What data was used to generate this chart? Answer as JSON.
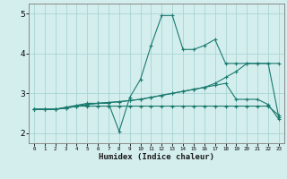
{
  "xlabel": "Humidex (Indice chaleur)",
  "background_color": "#d4eeee",
  "line_color": "#1a7a6e",
  "grid_color": "#a8d4d4",
  "xlim": [
    -0.5,
    23.5
  ],
  "ylim": [
    1.75,
    5.25
  ],
  "yticks": [
    2,
    3,
    4,
    5
  ],
  "xticks": [
    0,
    1,
    2,
    3,
    4,
    5,
    6,
    7,
    8,
    9,
    10,
    11,
    12,
    13,
    14,
    15,
    16,
    17,
    18,
    19,
    20,
    21,
    22,
    23
  ],
  "series": [
    {
      "x": [
        0,
        1,
        2,
        3,
        4,
        5,
        6,
        7,
        8,
        9,
        10,
        11,
        12,
        13,
        14,
        15,
        16,
        17,
        18,
        19,
        20,
        21,
        22,
        23
      ],
      "y": [
        2.6,
        2.6,
        2.6,
        2.65,
        2.7,
        2.75,
        2.75,
        2.75,
        2.05,
        2.9,
        3.35,
        4.2,
        4.95,
        4.95,
        4.1,
        4.1,
        4.2,
        4.35,
        3.75,
        3.75,
        3.75,
        3.75,
        3.75,
        2.4
      ]
    },
    {
      "x": [
        0,
        1,
        2,
        3,
        4,
        5,
        6,
        7,
        8,
        9,
        10,
        11,
        12,
        13,
        14,
        15,
        16,
        17,
        18,
        19,
        20,
        21,
        22,
        23
      ],
      "y": [
        2.6,
        2.6,
        2.6,
        2.65,
        2.68,
        2.68,
        2.68,
        2.68,
        2.68,
        2.68,
        2.68,
        2.68,
        2.68,
        2.68,
        2.68,
        2.68,
        2.68,
        2.68,
        2.68,
        2.68,
        2.68,
        2.68,
        2.68,
        2.45
      ]
    },
    {
      "x": [
        0,
        1,
        2,
        3,
        4,
        5,
        6,
        7,
        8,
        9,
        10,
        11,
        12,
        13,
        14,
        15,
        16,
        17,
        18,
        19,
        20,
        21,
        22,
        23
      ],
      "y": [
        2.6,
        2.6,
        2.6,
        2.63,
        2.68,
        2.72,
        2.75,
        2.77,
        2.79,
        2.82,
        2.85,
        2.9,
        2.95,
        3.0,
        3.05,
        3.1,
        3.15,
        3.25,
        3.4,
        3.55,
        3.75,
        3.75,
        3.75,
        3.75
      ]
    },
    {
      "x": [
        0,
        1,
        2,
        3,
        4,
        5,
        6,
        7,
        8,
        9,
        10,
        11,
        12,
        13,
        14,
        15,
        16,
        17,
        18,
        19,
        20,
        21,
        22,
        23
      ],
      "y": [
        2.6,
        2.6,
        2.6,
        2.63,
        2.68,
        2.72,
        2.75,
        2.77,
        2.79,
        2.82,
        2.85,
        2.9,
        2.95,
        3.0,
        3.05,
        3.1,
        3.15,
        3.2,
        3.25,
        2.85,
        2.85,
        2.85,
        2.72,
        2.35
      ]
    }
  ]
}
